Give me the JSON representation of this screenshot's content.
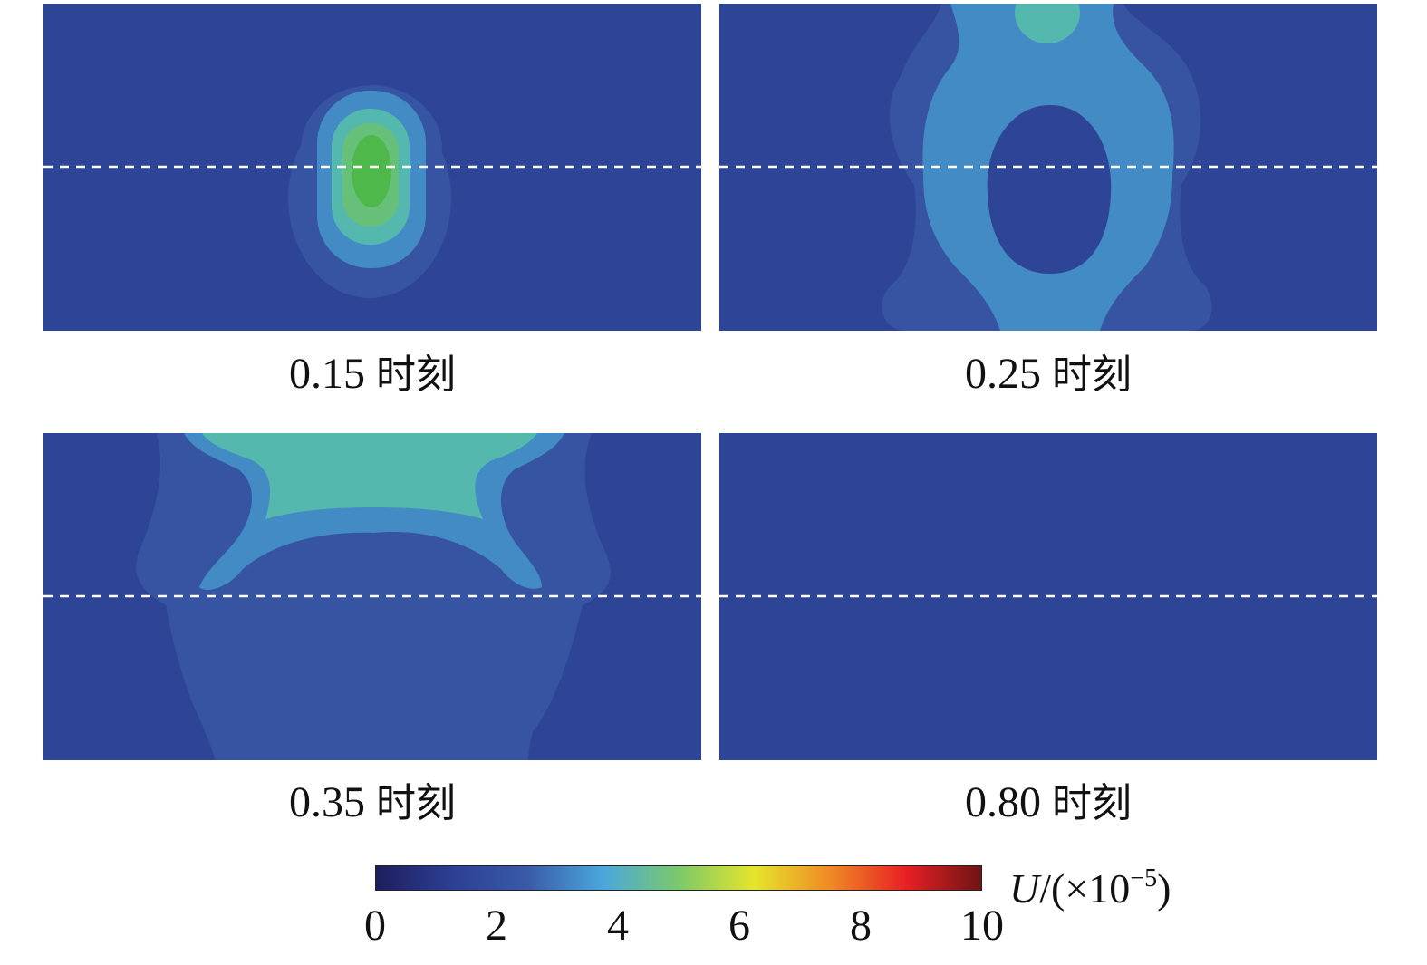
{
  "panels": [
    {
      "time": "0.15",
      "unit": "时刻"
    },
    {
      "time": "0.25",
      "unit": "时刻"
    },
    {
      "time": "0.35",
      "unit": "时刻"
    },
    {
      "time": "0.80",
      "unit": "时刻"
    }
  ],
  "colorbar": {
    "label_var": "U",
    "label_rest": "/(×10",
    "label_exp": "−5",
    "label_close": ")",
    "ticks": [
      "0",
      "2",
      "4",
      "6",
      "8",
      "10"
    ],
    "range": [
      0,
      10
    ],
    "colors": [
      "#1d1e5c",
      "#2c3f94",
      "#3a5aa8",
      "#4aa7dd",
      "#7cc96b",
      "#e5e52b",
      "#f08a25",
      "#e82025",
      "#6e1414"
    ]
  },
  "field_colors": {
    "level_0": "#2e4496",
    "level_1": "#3654a2",
    "level_2": "#428bc4",
    "level_3": "#55b8ae",
    "level_4": "#66c07a",
    "level_5": "#4fb84a",
    "dashed_line": "#ffffff"
  }
}
